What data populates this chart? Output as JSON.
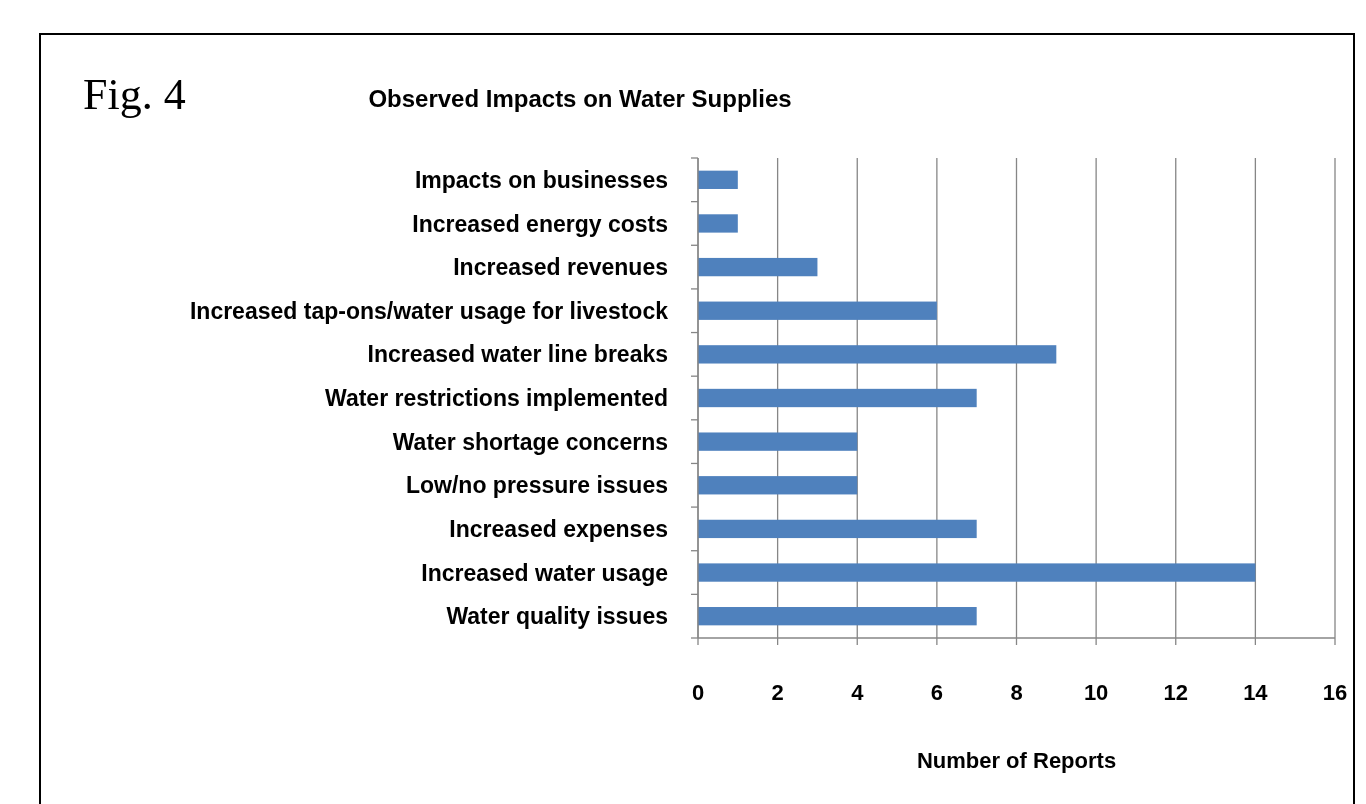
{
  "chart_data": {
    "type": "bar",
    "orientation": "horizontal",
    "title": "Observed Impacts on Water Supplies",
    "xlabel": "Number of Reports",
    "annotations": [
      "Fig. 4"
    ],
    "categories": [
      "Impacts on businesses",
      "Increased energy costs",
      "Increased revenues",
      "Increased tap-ons/water usage for livestock",
      "Increased water line breaks",
      "Water restrictions implemented",
      "Water shortage concerns",
      "Low/no pressure issues",
      "Increased expenses",
      "Increased water usage",
      "Water quality issues"
    ],
    "values": [
      1,
      1,
      3,
      6,
      9,
      7,
      4,
      4,
      7,
      14,
      7
    ],
    "color": "#4f81bd",
    "xlim": [
      0,
      16
    ],
    "xticks": [
      0,
      2,
      4,
      6,
      8,
      10,
      12,
      14,
      16
    ],
    "grid": "x"
  }
}
